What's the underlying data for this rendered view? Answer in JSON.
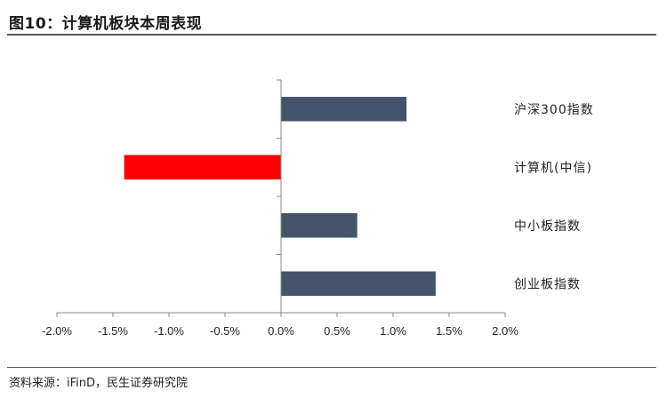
{
  "header": {
    "title": "图10：计算机板块本周表现"
  },
  "footer": {
    "source": "资料来源：iFinD，民生证券研究院"
  },
  "chart_data": {
    "type": "bar",
    "orientation": "horizontal",
    "categories": [
      "沪深300指数",
      "计算机(中信)",
      "中小板指数",
      "创业板指数"
    ],
    "values": [
      1.12,
      -1.4,
      0.68,
      1.38
    ],
    "unit": "%",
    "xlim": [
      -2.0,
      2.0
    ],
    "xticks": [
      "-2.0%",
      "-1.5%",
      "-1.0%",
      "-0.5%",
      "0.0%",
      "0.5%",
      "1.0%",
      "1.5%",
      "2.0%"
    ],
    "grid": false,
    "colors": {
      "positive": "#44546A",
      "negative": "#FF0000"
    }
  }
}
